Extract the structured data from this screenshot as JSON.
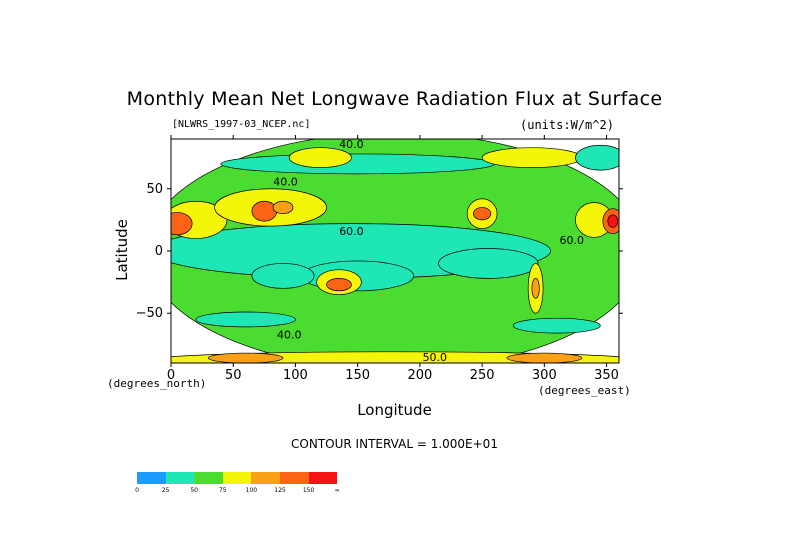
{
  "chart": {
    "title": "Monthly Mean Net Longwave Radiation Flux at Surface",
    "subtitle_left": "[NLWRS_1997-03_NCEP.nc]",
    "subtitle_right": "(units:W/m^2)",
    "ylabel": "Latitude",
    "xlabel": "Longitude",
    "y_unit_note": "(degrees_north)",
    "x_unit_note": "(degrees_east)",
    "contour_interval": "CONTOUR INTERVAL = 1.000E+01"
  },
  "chart_data": {
    "type": "heatmap",
    "title": "Monthly Mean Net Longwave Radiation Flux at Surface",
    "xlabel": "Longitude",
    "ylabel": "Latitude",
    "xlim": [
      0,
      360
    ],
    "ylim": [
      -90,
      90
    ],
    "x_ticks": [
      {
        "value": 0,
        "label": "0"
      },
      {
        "value": 50,
        "label": "50"
      },
      {
        "value": 100,
        "label": "100"
      },
      {
        "value": 150,
        "label": "150"
      },
      {
        "value": 200,
        "label": "200"
      },
      {
        "value": 250,
        "label": "250"
      },
      {
        "value": 300,
        "label": "300"
      },
      {
        "value": 350,
        "label": "350"
      }
    ],
    "y_ticks": [
      {
        "value": 50,
        "label": "50"
      },
      {
        "value": 0,
        "label": "0"
      },
      {
        "value": -50,
        "label": "−50"
      }
    ],
    "contour_labels": [
      {
        "lon": 145,
        "lat": 86,
        "text": "40.0"
      },
      {
        "lon": 92,
        "lat": 56,
        "text": "40.0"
      },
      {
        "lon": 145,
        "lat": 16,
        "text": "60.0"
      },
      {
        "lon": 322,
        "lat": 9,
        "text": "60.0"
      },
      {
        "lon": 95,
        "lat": -67,
        "text": "40.0"
      },
      {
        "lon": 212,
        "lat": -85,
        "text": "50.0"
      }
    ],
    "colorbar": {
      "levels": [
        "0",
        "25",
        "50",
        "75",
        "100",
        "125",
        "150",
        "∞"
      ],
      "colors": [
        "#1e9bff",
        "#1ee6b4",
        "#4bdc32",
        "#f5f50a",
        "#faa014",
        "#fa6414",
        "#f51414"
      ]
    },
    "regions": [
      {
        "lon": 180,
        "lat": 0,
        "rlon": 200,
        "rlat": 95,
        "level": 2
      },
      {
        "lon": 145,
        "lat": 0,
        "rlon": 160,
        "rlat": 22,
        "level": 1
      },
      {
        "lon": 150,
        "lat": -20,
        "rlon": 45,
        "rlat": 12,
        "level": 1
      },
      {
        "lon": 255,
        "lat": -10,
        "rlon": 40,
        "rlat": 12,
        "level": 1
      },
      {
        "lon": 90,
        "lat": -20,
        "rlon": 25,
        "rlat": 10,
        "level": 1
      },
      {
        "lon": 150,
        "lat": 70,
        "rlon": 110,
        "rlat": 8,
        "level": 1
      },
      {
        "lon": 60,
        "lat": -55,
        "rlon": 40,
        "rlat": 6,
        "level": 1
      },
      {
        "lon": 310,
        "lat": -60,
        "rlon": 35,
        "rlat": 6,
        "level": 1
      },
      {
        "lon": 20,
        "lat": 25,
        "rlon": 25,
        "rlat": 15,
        "level": 3
      },
      {
        "lon": 5,
        "lat": 22,
        "rlon": 12,
        "rlat": 9,
        "level": 5
      },
      {
        "lon": 80,
        "lat": 35,
        "rlon": 45,
        "rlat": 15,
        "level": 3
      },
      {
        "lon": 75,
        "lat": 32,
        "rlon": 10,
        "rlat": 8,
        "level": 5
      },
      {
        "lon": 90,
        "lat": 35,
        "rlon": 8,
        "rlat": 5,
        "level": 4
      },
      {
        "lon": 135,
        "lat": -25,
        "rlon": 18,
        "rlat": 10,
        "level": 3
      },
      {
        "lon": 135,
        "lat": -27,
        "rlon": 10,
        "rlat": 5,
        "level": 5
      },
      {
        "lon": 250,
        "lat": 30,
        "rlon": 12,
        "rlat": 12,
        "level": 3
      },
      {
        "lon": 250,
        "lat": 30,
        "rlon": 7,
        "rlat": 5,
        "level": 5
      },
      {
        "lon": 293,
        "lat": -30,
        "rlon": 6,
        "rlat": 20,
        "level": 3
      },
      {
        "lon": 293,
        "lat": -30,
        "rlon": 3,
        "rlat": 8,
        "level": 4
      },
      {
        "lon": 340,
        "lat": 25,
        "rlon": 15,
        "rlat": 14,
        "level": 3
      },
      {
        "lon": 355,
        "lat": 24,
        "rlon": 8,
        "rlat": 10,
        "level": 5
      },
      {
        "lon": 355,
        "lat": 24,
        "rlon": 4,
        "rlat": 5,
        "level": 6
      },
      {
        "lon": 180,
        "lat": -88,
        "rlon": 200,
        "rlat": 7,
        "level": 3
      },
      {
        "lon": 60,
        "lat": -86,
        "rlon": 30,
        "rlat": 4,
        "level": 4
      },
      {
        "lon": 300,
        "lat": -86,
        "rlon": 30,
        "rlat": 4,
        "level": 4
      },
      {
        "lon": 120,
        "lat": 75,
        "rlon": 25,
        "rlat": 8,
        "level": 3
      },
      {
        "lon": 290,
        "lat": 75,
        "rlon": 40,
        "rlat": 8,
        "level": 3
      },
      {
        "lon": 345,
        "lat": 75,
        "rlon": 20,
        "rlat": 10,
        "level": 1
      }
    ]
  }
}
